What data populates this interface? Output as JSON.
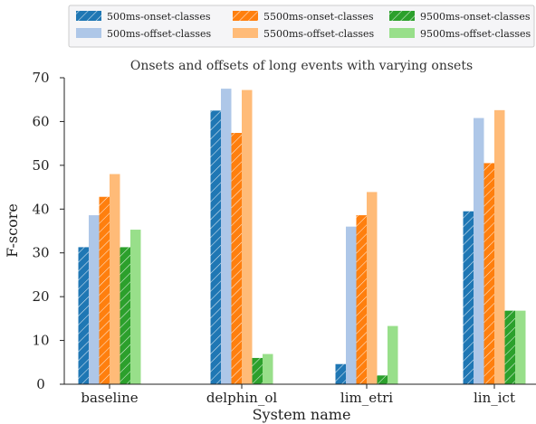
{
  "chart_data": {
    "type": "bar",
    "title": "Onsets and offsets of long events with varying onsets",
    "xlabel": "System name",
    "ylabel": "F-score",
    "categories": [
      "baseline",
      "delphin_ol",
      "lim_etri",
      "lin_ict"
    ],
    "ylim": [
      0,
      70
    ],
    "yticks": [
      0,
      10,
      20,
      30,
      40,
      50,
      60,
      70
    ],
    "grid": false,
    "legend_position": "top",
    "series": [
      {
        "name": "500ms-onset-classes",
        "color": "#1f77b4",
        "hatch": true,
        "values": [
          31.3,
          62.5,
          4.6,
          39.5
        ]
      },
      {
        "name": "500ms-offset-classes",
        "color": "#aec7e8",
        "hatch": false,
        "values": [
          38.6,
          67.5,
          36.0,
          60.8
        ]
      },
      {
        "name": "5500ms-onset-classes",
        "color": "#ff7f0e",
        "hatch": true,
        "values": [
          42.8,
          57.4,
          38.6,
          50.5
        ]
      },
      {
        "name": "5500ms-offset-classes",
        "color": "#ffbb78",
        "hatch": false,
        "values": [
          48.0,
          67.2,
          43.9,
          62.6
        ]
      },
      {
        "name": "9500ms-onset-classes",
        "color": "#2ca02c",
        "hatch": true,
        "values": [
          31.3,
          6.0,
          2.0,
          16.8
        ]
      },
      {
        "name": "9500ms-offset-classes",
        "color": "#98df8a",
        "hatch": false,
        "values": [
          35.3,
          6.9,
          13.3,
          16.8
        ]
      }
    ]
  }
}
